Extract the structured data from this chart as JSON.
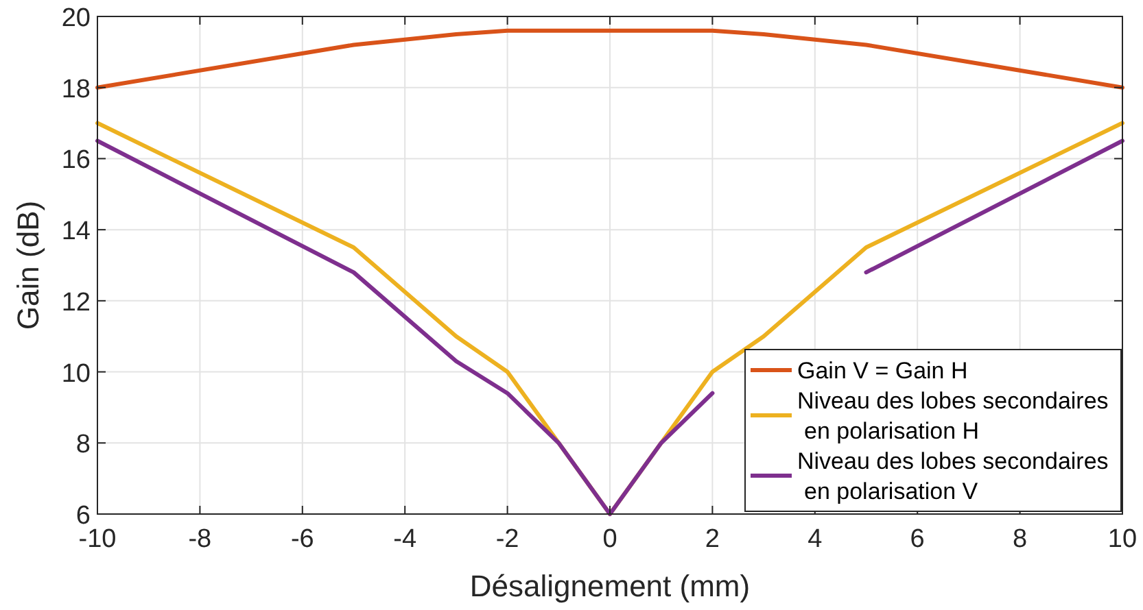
{
  "chart_data": {
    "type": "line",
    "xlabel": "Désalignement (mm)",
    "ylabel": "Gain (dB)",
    "x": [
      -10,
      -5,
      -3,
      -2,
      -1,
      0,
      1,
      2,
      3,
      5,
      10
    ],
    "series": [
      {
        "name": "Gain V = Gain H",
        "color": "#d95319",
        "values": [
          18,
          19.2,
          19.5,
          19.6,
          19.6,
          19.6,
          19.6,
          19.6,
          19.5,
          19.2,
          18
        ]
      },
      {
        "name": "Niveau des lobes secondaires\nen polarisation H",
        "color": "#edb120",
        "values": [
          17,
          13.5,
          11,
          10,
          8,
          6,
          8,
          10,
          11,
          13.5,
          17
        ]
      },
      {
        "name": "Niveau des lobes secondaires\nen polarisation V",
        "color": "#7e2f8e",
        "values": [
          16.5,
          12.8,
          10.3,
          9.4,
          8,
          6,
          8,
          9.4,
          null,
          12.8,
          16.5
        ]
      }
    ],
    "xlim": [
      -10,
      10
    ],
    "xticks": [
      -10,
      -8,
      -6,
      -4,
      -2,
      0,
      2,
      4,
      6,
      8,
      10
    ],
    "ylim": [
      6,
      20
    ],
    "yticks": [
      6,
      8,
      10,
      12,
      14,
      16,
      18,
      20
    ],
    "grid": true,
    "legend": "bottom right",
    "line_style": "solid",
    "marker": "none"
  }
}
